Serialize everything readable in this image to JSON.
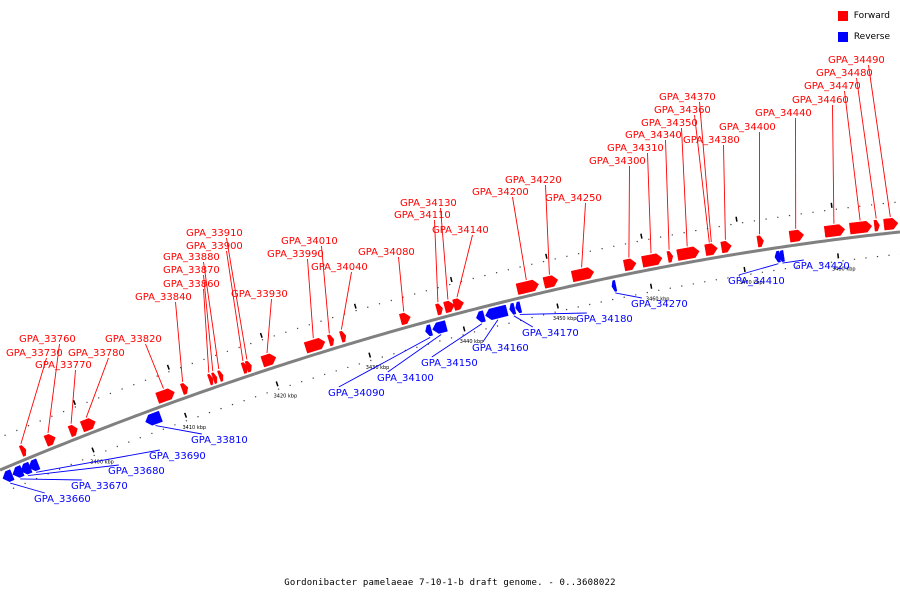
{
  "caption": "Gordonibacter pamelaeae 7-10-1-b draft genome. - 0..3608022",
  "legend": [
    {
      "label": "Forward",
      "color": "#ff0000"
    },
    {
      "label": "Reverse",
      "color": "#0000ff"
    }
  ],
  "colors": {
    "forward": "#ff0000",
    "reverse": "#0000ff",
    "backbone": "#808080"
  },
  "tick_labels": [
    "3400 kbp",
    "3410 kbp",
    "3420 kbp",
    "3430 kbp",
    "3440 kbp",
    "3450 kbp",
    "3460 kbp",
    "3470 kbp",
    "3480 kbp"
  ],
  "genes": [
    {
      "name": "GPA_33660",
      "strand": "reverse"
    },
    {
      "name": "GPA_33670",
      "strand": "reverse"
    },
    {
      "name": "GPA_33680",
      "strand": "reverse"
    },
    {
      "name": "GPA_33690",
      "strand": "reverse"
    },
    {
      "name": "GPA_33730",
      "strand": "forward"
    },
    {
      "name": "GPA_33760",
      "strand": "forward"
    },
    {
      "name": "GPA_33770",
      "strand": "forward"
    },
    {
      "name": "GPA_33780",
      "strand": "forward"
    },
    {
      "name": "GPA_33810",
      "strand": "reverse"
    },
    {
      "name": "GPA_33820",
      "strand": "forward"
    },
    {
      "name": "GPA_33840",
      "strand": "forward"
    },
    {
      "name": "GPA_33860",
      "strand": "forward"
    },
    {
      "name": "GPA_33870",
      "strand": "forward"
    },
    {
      "name": "GPA_33880",
      "strand": "forward"
    },
    {
      "name": "GPA_33900",
      "strand": "forward"
    },
    {
      "name": "GPA_33910",
      "strand": "forward"
    },
    {
      "name": "GPA_33930",
      "strand": "forward"
    },
    {
      "name": "GPA_33990",
      "strand": "forward"
    },
    {
      "name": "GPA_34010",
      "strand": "forward"
    },
    {
      "name": "GPA_34040",
      "strand": "forward"
    },
    {
      "name": "GPA_34080",
      "strand": "forward"
    },
    {
      "name": "GPA_34090",
      "strand": "reverse"
    },
    {
      "name": "GPA_34100",
      "strand": "reverse"
    },
    {
      "name": "GPA_34110",
      "strand": "forward"
    },
    {
      "name": "GPA_34130",
      "strand": "forward"
    },
    {
      "name": "GPA_34140",
      "strand": "forward"
    },
    {
      "name": "GPA_34150",
      "strand": "reverse"
    },
    {
      "name": "GPA_34160",
      "strand": "reverse"
    },
    {
      "name": "GPA_34170",
      "strand": "reverse"
    },
    {
      "name": "GPA_34180",
      "strand": "reverse"
    },
    {
      "name": "GPA_34200",
      "strand": "forward"
    },
    {
      "name": "GPA_34220",
      "strand": "forward"
    },
    {
      "name": "GPA_34250",
      "strand": "forward"
    },
    {
      "name": "GPA_34270",
      "strand": "reverse"
    },
    {
      "name": "GPA_34300",
      "strand": "forward"
    },
    {
      "name": "GPA_34310",
      "strand": "forward"
    },
    {
      "name": "GPA_34340",
      "strand": "forward"
    },
    {
      "name": "GPA_34350",
      "strand": "forward"
    },
    {
      "name": "GPA_34360",
      "strand": "forward"
    },
    {
      "name": "GPA_34370",
      "strand": "forward"
    },
    {
      "name": "GPA_34380",
      "strand": "forward"
    },
    {
      "name": "GPA_34400",
      "strand": "forward"
    },
    {
      "name": "GPA_34410",
      "strand": "reverse"
    },
    {
      "name": "GPA_34420",
      "strand": "reverse"
    },
    {
      "name": "GPA_34440",
      "strand": "forward"
    },
    {
      "name": "GPA_34460",
      "strand": "forward"
    },
    {
      "name": "GPA_34470",
      "strand": "forward"
    },
    {
      "name": "GPA_34480",
      "strand": "forward"
    },
    {
      "name": "GPA_34490",
      "strand": "forward"
    }
  ]
}
